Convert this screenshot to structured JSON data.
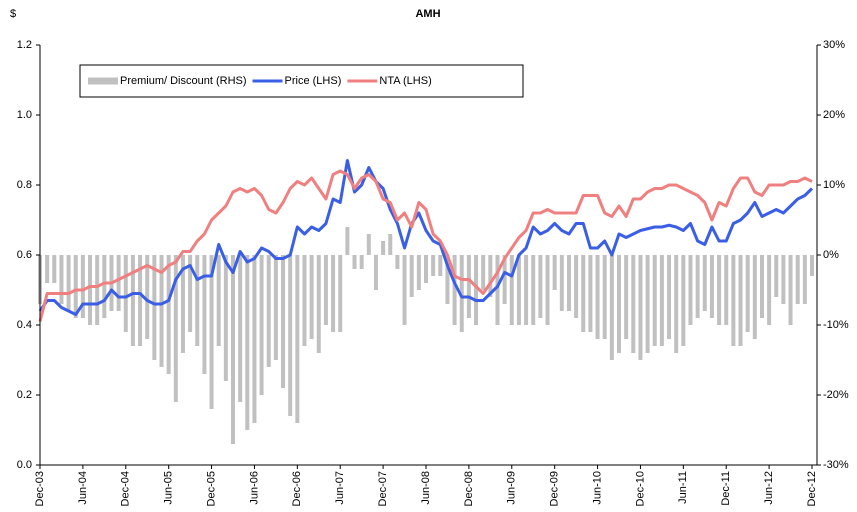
{
  "chart_data": {
    "type": "bar_line_combo",
    "title": "AMH",
    "y_label": "$",
    "categories": [
      "Dec-03",
      null,
      null,
      null,
      null,
      null,
      "Jun-04",
      null,
      null,
      null,
      null,
      null,
      "Dec-04",
      null,
      null,
      null,
      null,
      null,
      "Jun-05",
      null,
      null,
      null,
      null,
      null,
      "Dec-05",
      null,
      null,
      null,
      null,
      null,
      "Jun-06",
      null,
      null,
      null,
      null,
      null,
      "Dec-06",
      null,
      null,
      null,
      null,
      null,
      "Jun-07",
      null,
      null,
      null,
      null,
      null,
      "Dec-07",
      null,
      null,
      null,
      null,
      null,
      "Jun-08",
      null,
      null,
      null,
      null,
      null,
      "Dec-08",
      null,
      null,
      null,
      null,
      null,
      "Jun-09",
      null,
      null,
      null,
      null,
      null,
      "Dec-09",
      null,
      null,
      null,
      null,
      null,
      "Jun-10",
      null,
      null,
      null,
      null,
      null,
      "Dec-10",
      null,
      null,
      null,
      null,
      null,
      "Jun-11",
      null,
      null,
      null,
      null,
      null,
      "Dec-11",
      null,
      null,
      null,
      null,
      null,
      "Jun-12",
      null,
      null,
      null,
      null,
      null,
      "Dec-12"
    ],
    "series": [
      {
        "name": "Premium/ Discount (RHS)",
        "type": "bar",
        "axis": "y2",
        "color": "#c0c0c0",
        "values": [
          -7,
          -4,
          -4,
          -7,
          -8,
          -9,
          -9,
          -10,
          -10,
          -9,
          -8,
          -8,
          -11,
          -13,
          -13,
          -12,
          -15,
          -16,
          -17,
          -21,
          -14,
          -11,
          -13,
          -17,
          -22,
          -13,
          -18,
          -27,
          -21,
          -25,
          -24,
          -20,
          -16,
          -15,
          -19,
          -23,
          -24,
          -13,
          -12,
          -14,
          -10,
          -11,
          -11,
          4,
          -2,
          -2,
          3,
          -5,
          2,
          3,
          -2,
          -10,
          -6,
          -5,
          -4,
          -3,
          -3,
          -7,
          -10,
          -11,
          -9,
          -10,
          -5,
          -6,
          -10,
          -7,
          -10,
          -10,
          -10,
          -10,
          -9,
          -10,
          -5,
          -8,
          -8,
          -9,
          -11,
          -11,
          -12,
          -12,
          -15,
          -14,
          -12,
          -14,
          -15,
          -14,
          -13,
          -13,
          -12,
          -14,
          -13,
          -10,
          -9,
          -8,
          -9,
          -10,
          -10,
          -13,
          -13,
          -11,
          -12,
          -9,
          -10,
          -6,
          -7,
          -10,
          -7,
          -7,
          -3
        ]
      },
      {
        "name": "Price (LHS)",
        "type": "line",
        "color": "#3a5fe6",
        "values": [
          0.44,
          0.47,
          0.47,
          0.45,
          0.44,
          0.43,
          0.46,
          0.46,
          0.46,
          0.47,
          0.5,
          0.48,
          0.48,
          0.49,
          0.49,
          0.47,
          0.46,
          0.46,
          0.47,
          0.53,
          0.56,
          0.57,
          0.53,
          0.54,
          0.54,
          0.63,
          0.58,
          0.55,
          0.61,
          0.58,
          0.59,
          0.62,
          0.61,
          0.59,
          0.59,
          0.6,
          0.68,
          0.66,
          0.68,
          0.67,
          0.69,
          0.76,
          0.75,
          0.87,
          0.78,
          0.8,
          0.85,
          0.81,
          0.79,
          0.73,
          0.69,
          0.62,
          0.69,
          0.72,
          0.67,
          0.64,
          0.63,
          0.57,
          0.52,
          0.48,
          0.48,
          0.47,
          0.47,
          0.49,
          0.51,
          0.55,
          0.54,
          0.6,
          0.62,
          0.68,
          0.66,
          0.67,
          0.69,
          0.67,
          0.66,
          0.69,
          0.69,
          0.62,
          0.62,
          0.64,
          0.6,
          0.66,
          0.65,
          0.66,
          0.67,
          0.675,
          0.68,
          0.68,
          0.685,
          0.68,
          0.67,
          0.69,
          0.64,
          0.63,
          0.68,
          0.64,
          0.64,
          0.69,
          0.7,
          0.72,
          0.75,
          0.71,
          0.72,
          0.73,
          0.72,
          0.74,
          0.76,
          0.77,
          0.79
        ]
      },
      {
        "name": "NTA (LHS)",
        "type": "line",
        "color": "#f08080",
        "values": [
          0.41,
          0.49,
          0.49,
          0.49,
          0.49,
          0.5,
          0.5,
          0.51,
          0.51,
          0.52,
          0.52,
          0.53,
          0.54,
          0.55,
          0.56,
          0.57,
          0.56,
          0.55,
          0.57,
          0.58,
          0.61,
          0.61,
          0.64,
          0.66,
          0.7,
          0.72,
          0.74,
          0.78,
          0.79,
          0.78,
          0.79,
          0.77,
          0.73,
          0.72,
          0.75,
          0.79,
          0.81,
          0.8,
          0.82,
          0.79,
          0.76,
          0.83,
          0.84,
          0.83,
          0.79,
          0.82,
          0.83,
          0.81,
          0.76,
          0.75,
          0.7,
          0.72,
          0.68,
          0.75,
          0.73,
          0.66,
          0.64,
          0.6,
          0.54,
          0.53,
          0.53,
          0.51,
          0.49,
          0.52,
          0.55,
          0.59,
          0.62,
          0.65,
          0.67,
          0.72,
          0.72,
          0.73,
          0.72,
          0.72,
          0.72,
          0.72,
          0.77,
          0.77,
          0.77,
          0.72,
          0.71,
          0.74,
          0.71,
          0.76,
          0.76,
          0.78,
          0.79,
          0.79,
          0.8,
          0.8,
          0.79,
          0.78,
          0.77,
          0.75,
          0.7,
          0.75,
          0.74,
          0.79,
          0.82,
          0.82,
          0.78,
          0.77,
          0.8,
          0.8,
          0.8,
          0.81,
          0.81,
          0.82,
          0.81
        ]
      }
    ],
    "ylim": [
      0,
      1.2
    ],
    "yticks": [
      {
        "value": 0,
        "label": "0.0"
      },
      0.2,
      0.4,
      0.6,
      0.8,
      {
        "value": 1,
        "label": "1.0"
      },
      1.2
    ],
    "y2lim": [
      -30,
      30
    ],
    "y2ticks": [
      {
        "value": -30,
        "label": "-30%"
      },
      {
        "value": -20,
        "label": "-20%"
      },
      {
        "value": -10,
        "label": "-10%"
      },
      {
        "value": 0,
        "label": "0%"
      },
      {
        "value": 10,
        "label": "10%"
      },
      {
        "value": 20,
        "label": "20%"
      },
      {
        "value": 30,
        "label": "30%"
      }
    ],
    "legend": "top-left",
    "grid": false
  }
}
